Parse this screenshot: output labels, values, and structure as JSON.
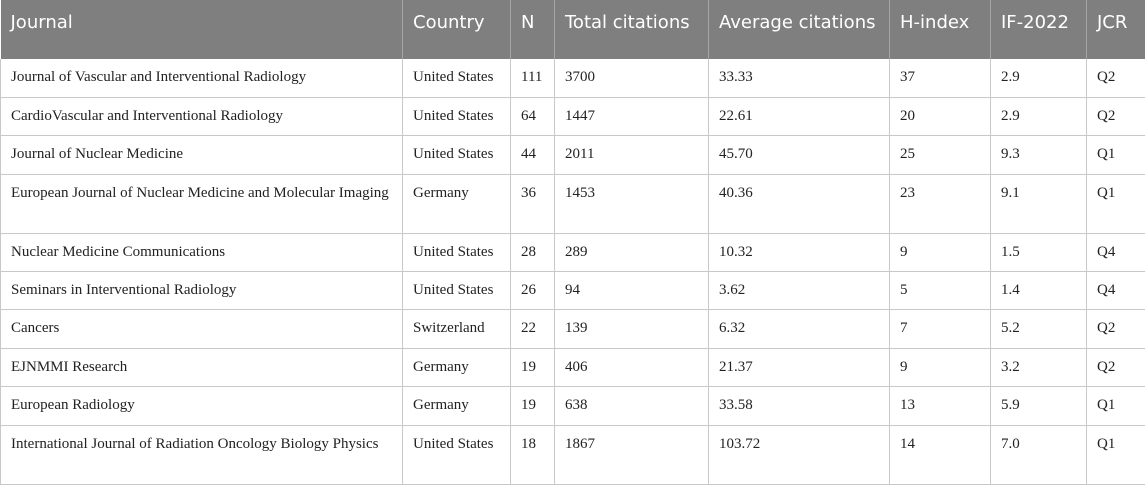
{
  "headers": [
    "Journal",
    "Country",
    "N",
    "Total citations",
    "Average citations",
    "H-index",
    "IF-2022",
    "JCR"
  ],
  "rows": [
    [
      "Journal of Vascular and Interventional Radiology",
      "United States",
      "111",
      "3700",
      "33.33",
      "37",
      "2.9",
      "Q2"
    ],
    [
      "CardioVascular and Interventional Radiology",
      "United States",
      "64",
      "1447",
      "22.61",
      "20",
      "2.9",
      "Q2"
    ],
    [
      "Journal of Nuclear Medicine",
      "United States",
      "44",
      "2011",
      "45.70",
      "25",
      "9.3",
      "Q1"
    ],
    [
      "European Journal of Nuclear Medicine and Molecular Imaging",
      "Germany",
      "36",
      "1453",
      "40.36",
      "23",
      "9.1",
      "Q1"
    ],
    [
      "Nuclear Medicine Communications",
      "United States",
      "28",
      "289",
      "10.32",
      "9",
      "1.5",
      "Q4"
    ],
    [
      "Seminars in Interventional Radiology",
      "United States",
      "26",
      "94",
      "3.62",
      "5",
      "1.4",
      "Q4"
    ],
    [
      "Cancers",
      "Switzerland",
      "22",
      "139",
      "6.32",
      "7",
      "5.2",
      "Q2"
    ],
    [
      "EJNMMI Research",
      "Germany",
      "19",
      "406",
      "21.37",
      "9",
      "3.2",
      "Q2"
    ],
    [
      "European Radiology",
      "Germany",
      "19",
      "638",
      "33.58",
      "13",
      "5.9",
      "Q1"
    ],
    [
      "International Journal of Radiation Oncology Biology Physics",
      "United States",
      "18",
      "1867",
      "103.72",
      "14",
      "7.0",
      "Q1"
    ]
  ]
}
